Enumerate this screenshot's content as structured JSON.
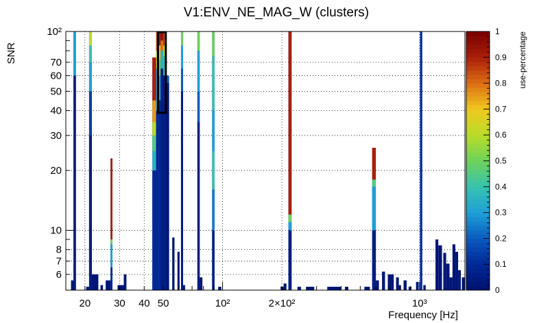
{
  "chart_data": {
    "type": "heatmap",
    "title": "V1:ENV_NE_MAG_W (clusters)",
    "xlabel": "Frequency [Hz]",
    "ylabel": "SNR",
    "colorbar_label": "use-percentage",
    "x_scale": "log",
    "y_scale": "log",
    "xlim": [
      16,
      1700
    ],
    "ylim": [
      5,
      100
    ],
    "zlim": [
      0,
      1
    ],
    "x_tick_labels": [
      {
        "value": 20,
        "label": "20"
      },
      {
        "value": 30,
        "label": "30"
      },
      {
        "value": 40,
        "label": "40"
      },
      {
        "value": 50,
        "label": "50"
      },
      {
        "value": 100,
        "label": "10²"
      },
      {
        "value": 200,
        "label": "2×10²"
      },
      {
        "value": 1000,
        "label": "10³"
      }
    ],
    "y_tick_labels": [
      {
        "value": 6,
        "label": "6"
      },
      {
        "value": 7,
        "label": "7"
      },
      {
        "value": 8,
        "label": "8"
      },
      {
        "value": 10,
        "label": "10"
      },
      {
        "value": 20,
        "label": "20"
      },
      {
        "value": 30,
        "label": "30"
      },
      {
        "value": 40,
        "label": "40"
      },
      {
        "value": 50,
        "label": "50"
      },
      {
        "value": 60,
        "label": "60"
      },
      {
        "value": 70,
        "label": "70"
      },
      {
        "value": 100,
        "label": "10²"
      }
    ],
    "colorbar_ticks": [
      {
        "value": 0,
        "label": "0"
      },
      {
        "value": 0.1,
        "label": "0.1"
      },
      {
        "value": 0.2,
        "label": "0.2"
      },
      {
        "value": 0.3,
        "label": "0.3"
      },
      {
        "value": 0.4,
        "label": "0.4"
      },
      {
        "value": 0.5,
        "label": "0.5"
      },
      {
        "value": 0.6,
        "label": "0.6"
      },
      {
        "value": 0.7,
        "label": "0.7"
      },
      {
        "value": 0.8,
        "label": "0.8"
      },
      {
        "value": 0.9,
        "label": "0.9"
      },
      {
        "value": 1,
        "label": "1"
      }
    ],
    "grid": true,
    "columns": [
      {
        "f": [
          17.0,
          17.5
        ],
        "top": 5.6,
        "segs": []
      },
      {
        "f": [
          17.5,
          18.0
        ],
        "top": 100,
        "segs": [
          [
            60,
            100,
            0.3
          ],
          [
            5,
            60,
            0.05
          ]
        ]
      },
      {
        "f": [
          20.3,
          21.0
        ],
        "top": 5.2,
        "segs": []
      },
      {
        "f": [
          21.0,
          21.7
        ],
        "top": 100,
        "segs": [
          [
            85,
            100,
            0.6
          ],
          [
            70,
            85,
            0.4
          ],
          [
            50,
            70,
            0.3
          ],
          [
            30,
            50,
            0.15
          ],
          [
            5,
            30,
            0.05
          ]
        ]
      },
      {
        "f": [
          21.7,
          23.4
        ],
        "top": 6.0,
        "segs": []
      },
      {
        "f": [
          24.0,
          24.7
        ],
        "top": 5.3,
        "segs": []
      },
      {
        "f": [
          25.5,
          27.0
        ],
        "top": 5.6,
        "segs": []
      },
      {
        "f": [
          27.0,
          27.6
        ],
        "top": 23.0,
        "segs": [
          [
            9.0,
            23.0,
            0.9
          ],
          [
            8.5,
            9.0,
            0.5
          ],
          [
            6.5,
            8.5,
            0.3
          ],
          [
            5,
            6.5,
            0.1
          ]
        ]
      },
      {
        "f": [
          29.3,
          31.5
        ],
        "top": 5.3,
        "segs": []
      },
      {
        "f": [
          31.5,
          32.5
        ],
        "top": 6.0,
        "segs": []
      },
      {
        "f": [
          44.0,
          46.0
        ],
        "top": 74.0,
        "segs": [
          [
            45,
            74,
            0.9
          ],
          [
            35,
            45,
            0.75
          ],
          [
            30,
            35,
            0.6
          ],
          [
            25,
            30,
            0.45
          ],
          [
            20,
            25,
            0.35
          ],
          [
            5,
            20,
            0.1
          ]
        ]
      },
      {
        "f": [
          46.0,
          47.5
        ],
        "top": 100,
        "segs": [
          [
            80,
            100,
            0.85
          ],
          [
            65,
            80,
            0.6
          ],
          [
            40,
            65,
            0.3
          ],
          [
            5,
            40,
            0.1
          ]
        ]
      },
      {
        "f": [
          47.5,
          48.5
        ],
        "top": 100,
        "segs": [
          [
            85,
            100,
            0.9
          ],
          [
            72,
            85,
            0.7
          ],
          [
            60,
            72,
            0.5
          ],
          [
            45,
            60,
            0.3
          ],
          [
            5,
            45,
            0.1
          ]
        ]
      },
      {
        "f": [
          48.5,
          50.0
        ],
        "top": 100,
        "segs": [
          [
            90,
            100,
            0.95
          ],
          [
            80,
            90,
            0.8
          ],
          [
            65,
            80,
            0.35
          ],
          [
            5,
            65,
            0.05
          ]
        ]
      },
      {
        "f": [
          50.0,
          51.5
        ],
        "top": 100,
        "segs": [
          [
            85,
            100,
            0.85
          ],
          [
            75,
            85,
            0.6
          ],
          [
            60,
            75,
            0.4
          ],
          [
            5,
            60,
            0.05
          ]
        ]
      },
      {
        "f": [
          51.5,
          53.5
        ],
        "top": 60.0,
        "segs": [
          [
            55,
            60,
            0.2
          ],
          [
            5,
            55,
            0.03
          ]
        ]
      },
      {
        "f": [
          55.5,
          57.0
        ],
        "top": 9.2,
        "segs": []
      },
      {
        "f": [
          59.0,
          60.5
        ],
        "top": 7.8,
        "segs": []
      },
      {
        "f": [
          61.5,
          63.0
        ],
        "top": 100,
        "segs": [
          [
            85,
            100,
            0.5
          ],
          [
            65,
            85,
            0.3
          ],
          [
            50,
            65,
            0.2
          ],
          [
            5,
            50,
            0.05
          ]
        ]
      },
      {
        "f": [
          63.0,
          64.5
        ],
        "top": 5.3,
        "segs": []
      },
      {
        "f": [
          74.5,
          76.5
        ],
        "top": 100,
        "segs": [
          [
            80,
            100,
            0.5
          ],
          [
            50,
            80,
            0.3
          ],
          [
            35,
            50,
            0.2
          ],
          [
            5,
            35,
            0.05
          ]
        ]
      },
      {
        "f": [
          76.5,
          79.0
        ],
        "top": 5.8,
        "segs": []
      },
      {
        "f": [
          88.5,
          91.0
        ],
        "top": 100,
        "segs": [
          [
            75,
            100,
            0.5
          ],
          [
            40,
            75,
            0.4
          ],
          [
            25,
            40,
            0.3
          ],
          [
            16,
            25,
            0.4
          ],
          [
            10,
            16,
            0.25
          ],
          [
            5,
            10,
            0.05
          ]
        ]
      },
      {
        "f": [
          95.0,
          98.5
        ],
        "top": 5.2,
        "segs": []
      },
      {
        "f": [
          197.0,
          204.0
        ],
        "top": 5.2,
        "segs": []
      },
      {
        "f": [
          204.0,
          211.0
        ],
        "top": 5.4,
        "segs": []
      },
      {
        "f": [
          216.0,
          224.0
        ],
        "top": 100,
        "segs": [
          [
            12.0,
            100,
            0.9
          ],
          [
            11.0,
            12.0,
            0.5
          ],
          [
            10.0,
            11.0,
            0.3
          ],
          [
            5,
            10,
            0.05
          ]
        ]
      },
      {
        "f": [
          240.0,
          250.0
        ],
        "top": 5.2,
        "segs": []
      },
      {
        "f": [
          265.0,
          292.0
        ],
        "top": 5.2,
        "segs": []
      },
      {
        "f": [
          340.0,
          400.0
        ],
        "top": 5.2,
        "segs": []
      },
      {
        "f": [
          418.0,
          435.0
        ],
        "top": 5.2,
        "segs": []
      },
      {
        "f": [
          525.0,
          560.0
        ],
        "top": 5.2,
        "segs": []
      },
      {
        "f": [
          575.0,
          600.0
        ],
        "top": 26.0,
        "segs": [
          [
            18.0,
            26.0,
            0.9
          ],
          [
            16.5,
            18.0,
            0.45
          ],
          [
            10.0,
            16.5,
            0.3
          ],
          [
            5,
            10,
            0.05
          ]
        ]
      },
      {
        "f": [
          600.0,
          622.0
        ],
        "top": 5.6,
        "segs": []
      },
      {
        "f": [
          645.0,
          668.0
        ],
        "top": 6.2,
        "segs": []
      },
      {
        "f": [
          690.0,
          740.0
        ],
        "top": 6.0,
        "segs": []
      },
      {
        "f": [
          760.0,
          785.0
        ],
        "top": 5.8,
        "segs": []
      },
      {
        "f": [
          785.0,
          805.0
        ],
        "top": 5.3,
        "segs": []
      },
      {
        "f": [
          830.0,
          860.0
        ],
        "top": 5.6,
        "segs": []
      },
      {
        "f": [
          880.0,
          910.0
        ],
        "top": 5.2,
        "segs": []
      },
      {
        "f": [
          960.0,
          990.0
        ],
        "top": 5.5,
        "segs": []
      },
      {
        "f": [
          1005.0,
          1032.0
        ],
        "top": 100,
        "segs": [
          [
            5,
            100,
            0.12
          ]
        ]
      },
      {
        "f": [
          1045.0,
          1075.0
        ],
        "top": 5.3,
        "segs": []
      },
      {
        "f": [
          1205.0,
          1245.0
        ],
        "top": 9.0,
        "segs": []
      },
      {
        "f": [
          1245.0,
          1300.0
        ],
        "top": 8.4,
        "segs": []
      },
      {
        "f": [
          1320.0,
          1365.0
        ],
        "top": 7.7,
        "segs": []
      },
      {
        "f": [
          1365.0,
          1420.0
        ],
        "top": 6.8,
        "segs": []
      },
      {
        "f": [
          1420.0,
          1470.0
        ],
        "top": 5.8,
        "segs": []
      },
      {
        "f": [
          1470.0,
          1520.0
        ],
        "top": 8.5,
        "segs": []
      },
      {
        "f": [
          1520.0,
          1570.0
        ],
        "top": 7.8,
        "segs": []
      },
      {
        "f": [
          1570.0,
          1620.0
        ],
        "top": 6.3,
        "segs": []
      },
      {
        "f": [
          1640.0,
          1695.0
        ],
        "top": 5.8,
        "segs": []
      }
    ],
    "outlines": [
      {
        "f": [
          17.0,
          45.0
        ],
        "snr": [
          100,
          100
        ]
      },
      {
        "f": [
          45.0,
          51.5
        ],
        "snr": [
          100,
          100
        ]
      },
      {
        "f": [
          47.0,
          51.5
        ],
        "snr": [
          39.0,
          100
        ]
      },
      {
        "f": [
          51.5,
          1700.0
        ],
        "snr": [
          100,
          100
        ]
      }
    ]
  }
}
